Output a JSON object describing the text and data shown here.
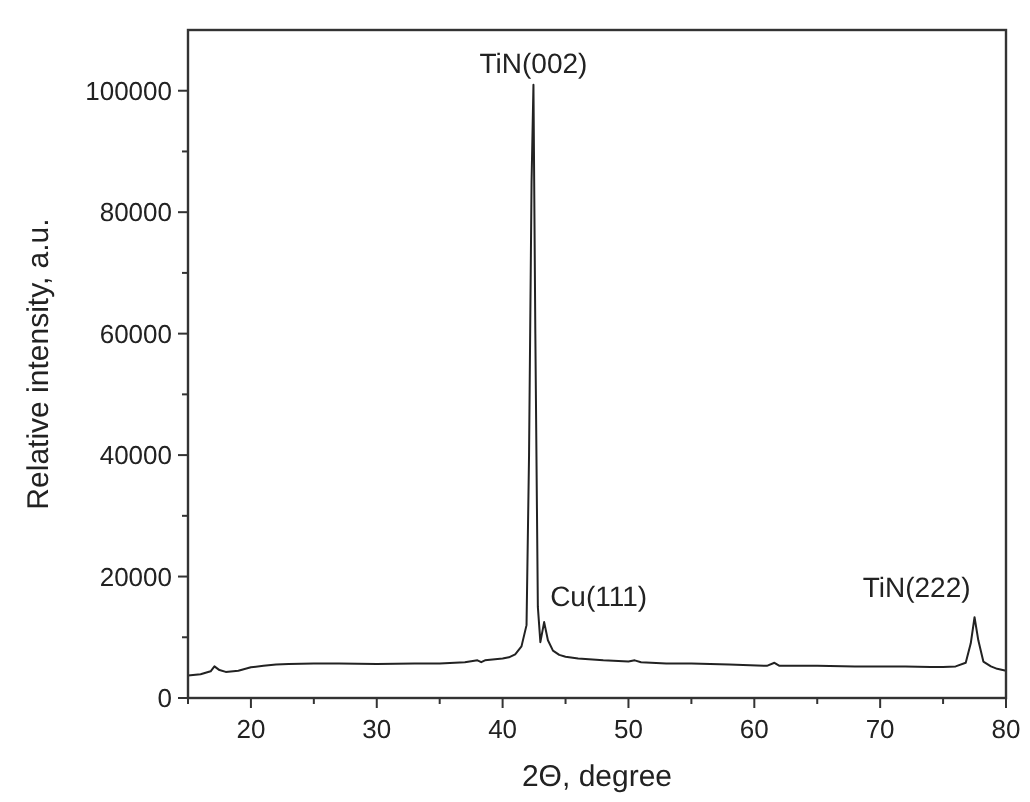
{
  "chart_data": {
    "type": "line",
    "xlabel": "2Θ, degree",
    "ylabel": "Relative intensity, a.u.",
    "x": [
      15,
      16,
      16.8,
      17.1,
      17.5,
      18,
      19,
      20,
      21,
      22,
      23,
      25,
      27,
      30,
      33,
      35,
      37,
      38,
      38.3,
      38.6,
      39,
      40,
      40.5,
      41,
      41.5,
      41.9,
      42.1,
      42.3,
      42.45,
      42.6,
      42.8,
      43.0,
      43.3,
      43.6,
      44,
      44.5,
      45,
      46,
      48,
      50,
      50.5,
      51,
      53,
      55,
      58,
      61,
      61.6,
      62,
      65,
      68,
      70,
      72,
      74,
      75,
      76,
      76.8,
      77.2,
      77.5,
      77.8,
      78.2,
      78.8,
      79.3,
      80
    ],
    "series": [
      {
        "color": "#222222",
        "values": [
          3700,
          3900,
          4400,
          5200,
          4600,
          4300,
          4500,
          5060,
          5300,
          5500,
          5600,
          5700,
          5700,
          5600,
          5700,
          5700,
          5900,
          6200,
          5900,
          6200,
          6300,
          6500,
          6700,
          7200,
          8500,
          12000,
          40000,
          85000,
          101000,
          60000,
          15000,
          9200,
          12500,
          9500,
          7800,
          7100,
          6800,
          6500,
          6200,
          6000,
          6200,
          5900,
          5700,
          5700,
          5500,
          5300,
          5800,
          5300,
          5300,
          5200,
          5200,
          5200,
          5100,
          5100,
          5200,
          5800,
          9000,
          13300,
          9500,
          6000,
          5200,
          4800,
          4500
        ]
      }
    ],
    "xlim": [
      15,
      80
    ],
    "xticks": [
      {
        "value": 15,
        "label": null
      },
      20,
      {
        "value": 25,
        "label": null
      },
      30,
      {
        "value": 35,
        "label": null
      },
      40,
      {
        "value": 45,
        "label": null
      },
      50,
      {
        "value": 55,
        "label": null
      },
      60,
      {
        "value": 65,
        "label": null
      },
      70,
      {
        "value": 75,
        "label": null
      },
      80
    ],
    "ylim": [
      0,
      110000
    ],
    "yticks": [
      0,
      {
        "value": 10000,
        "label": null
      },
      20000,
      {
        "value": 30000,
        "label": null
      },
      40000,
      {
        "value": 50000,
        "label": null
      },
      60000,
      {
        "value": 70000,
        "label": null
      },
      80000,
      {
        "value": 90000,
        "label": null
      },
      100000
    ],
    "annotations": [
      {
        "text": "TiN(002)",
        "x": 42.45,
        "y": 101000
      },
      {
        "text": "Cu(111)",
        "x": 43.3,
        "y": 12500
      },
      {
        "text": "TiN(222)",
        "x": 77.5,
        "y": 13300
      }
    ],
    "grid": false,
    "line_style": "solid"
  }
}
